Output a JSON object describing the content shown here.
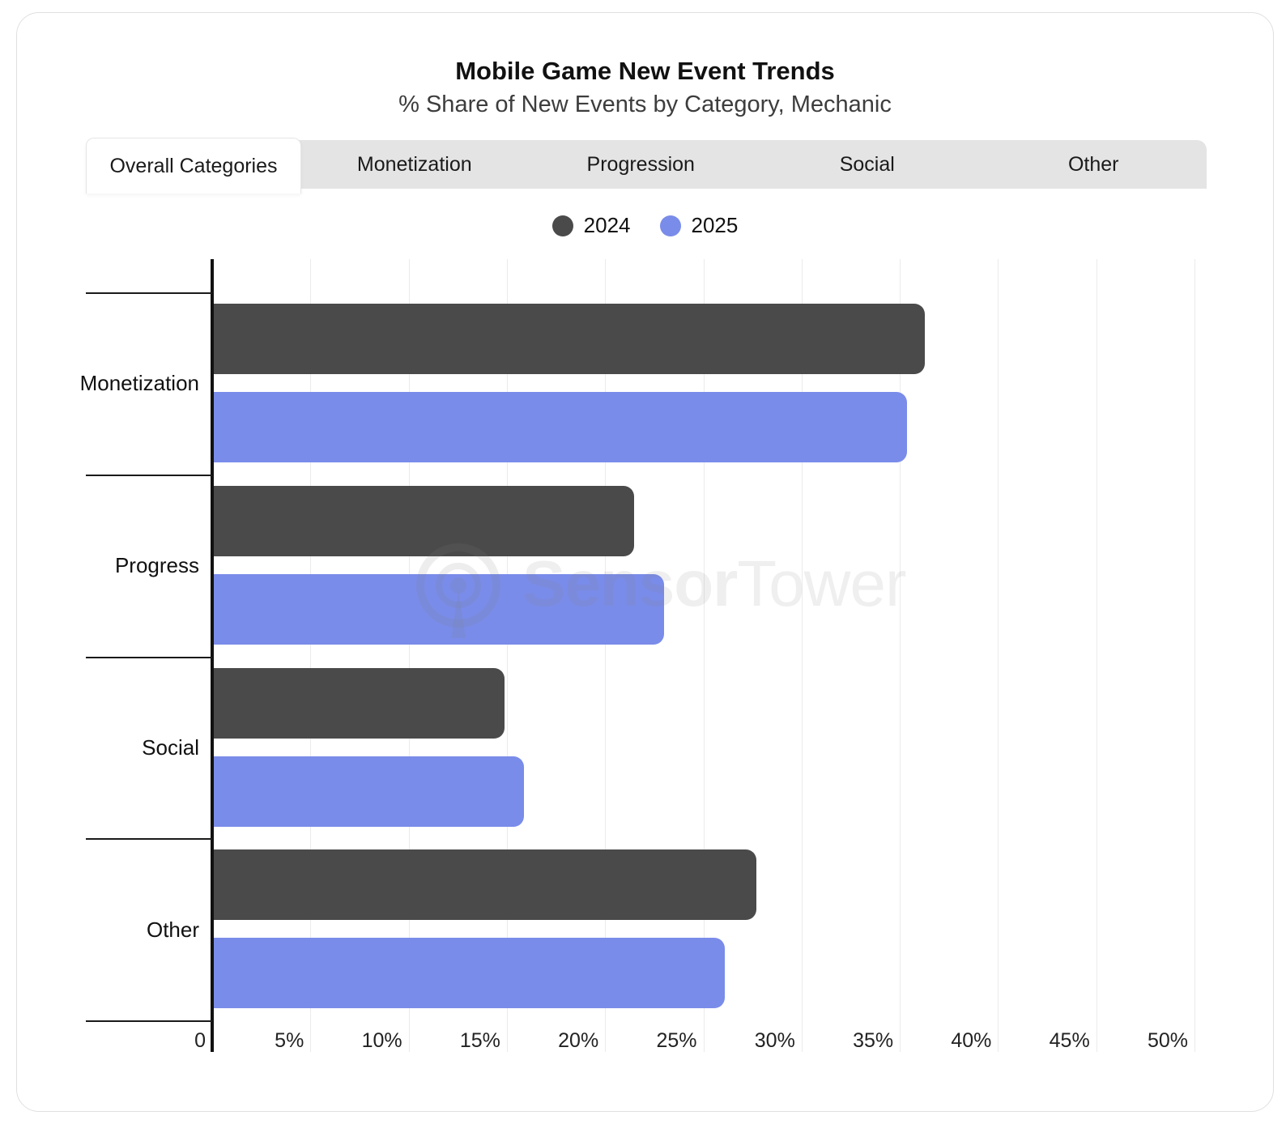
{
  "header": {
    "title": "Mobile Game New Event Trends",
    "subtitle": "% Share of New Events by Category, Mechanic"
  },
  "tabs": {
    "items": [
      {
        "label": "Overall Categories",
        "active": true
      },
      {
        "label": "Monetization",
        "active": false
      },
      {
        "label": "Progression",
        "active": false
      },
      {
        "label": "Social",
        "active": false
      },
      {
        "label": "Other",
        "active": false
      }
    ]
  },
  "legend": [
    {
      "label": "2024",
      "color": "#4a4a4a"
    },
    {
      "label": "2025",
      "color": "#7a8ce9"
    }
  ],
  "watermark": {
    "part1": "Sensor",
    "part2": "Tower"
  },
  "colors": {
    "series_2024": "#4a4a4a",
    "series_2025": "#7a8ce9",
    "tabbar_bg": "#e4e4e4",
    "gridline": "#ebebeb",
    "axis": "#111111"
  },
  "chart_data": {
    "type": "bar",
    "orientation": "horizontal",
    "title": "Mobile Game New Event Trends",
    "subtitle": "% Share of New Events by Category, Mechanic",
    "categories": [
      "Monetization",
      "Progress",
      "Social",
      "Other"
    ],
    "series": [
      {
        "name": "2024",
        "color": "#4a4a4a",
        "values": [
          36.2,
          21.4,
          14.8,
          27.6
        ]
      },
      {
        "name": "2025",
        "color": "#7a8ce9",
        "values": [
          35.3,
          22.9,
          15.8,
          26.0
        ]
      }
    ],
    "xlabel": "",
    "ylabel": "",
    "xlim": [
      0,
      50
    ],
    "xtick_step": 5,
    "xticks": [
      "0",
      "5%",
      "10%",
      "15%",
      "20%",
      "25%",
      "30%",
      "35%",
      "40%",
      "45%",
      "50%"
    ],
    "grid": true,
    "legend_position": "top-center"
  }
}
